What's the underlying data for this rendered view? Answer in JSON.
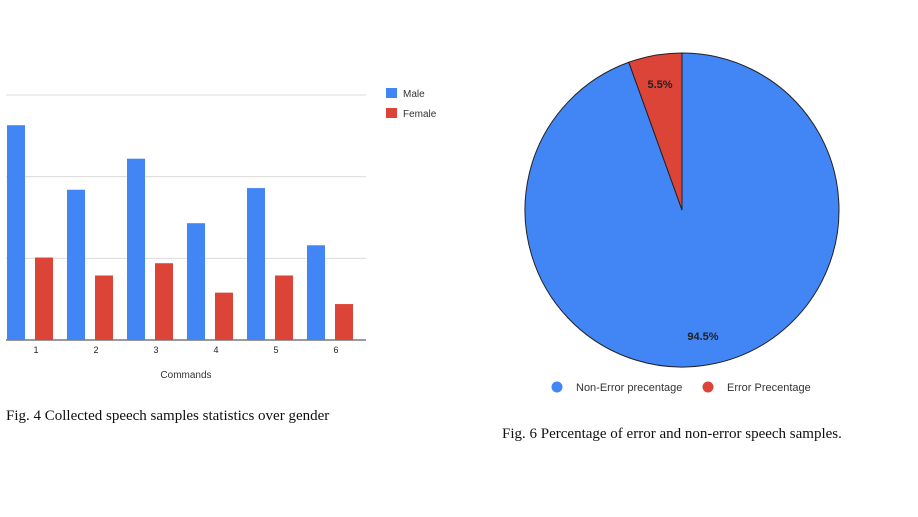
{
  "chart_data": [
    {
      "type": "bar",
      "categories": [
        "1",
        "2",
        "3",
        "4",
        "5",
        "6"
      ],
      "series": [
        {
          "name": "Male",
          "color": "#4285F4",
          "values": [
            263,
            184,
            222,
            143,
            186,
            116
          ]
        },
        {
          "name": "Female",
          "color": "#DB4437",
          "values": [
            101,
            79,
            94,
            58,
            79,
            44
          ]
        }
      ],
      "xlabel": "Commands",
      "ylabel": "",
      "ylim": [
        0,
        300
      ],
      "grid": true,
      "legend": "right"
    },
    {
      "type": "pie",
      "slices": [
        {
          "label": "Non-Error precentage",
          "value": 94.5,
          "display": "94.5%",
          "color": "#4285F4"
        },
        {
          "label": "Error Precentage",
          "value": 5.5,
          "display": "5.5%",
          "color": "#DB4437"
        }
      ],
      "legend": "bottom"
    }
  ],
  "captions": {
    "fig4": "Fig. 4 Collected speech samples statistics over gender",
    "fig6": "Fig. 6 Percentage of error and non-error speech samples."
  }
}
